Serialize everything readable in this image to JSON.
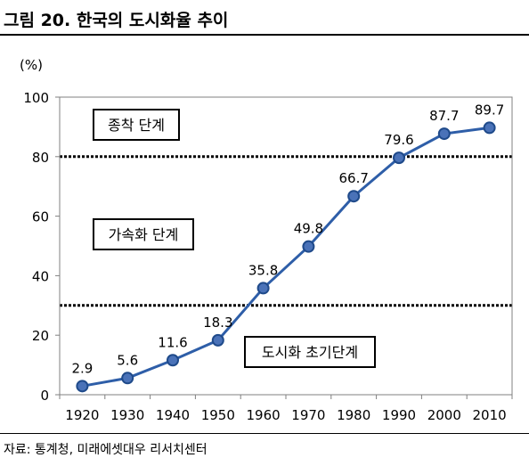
{
  "header": {
    "title": "그림 20. 한국의 도시화율 추이"
  },
  "footer": {
    "source": "자료: 통계청, 미래에셋대우 리서치센터"
  },
  "colors": {
    "line": "#2e5ea8",
    "marker_fill": "#4a72b8",
    "marker_edge": "#1f4a8a",
    "frame": "#808080"
  },
  "chart_data": {
    "type": "line",
    "unit_label": "(%)",
    "categories": [
      "1920",
      "1930",
      "1940",
      "1950",
      "1960",
      "1970",
      "1980",
      "1990",
      "2000",
      "2010"
    ],
    "values": [
      2.9,
      5.6,
      11.6,
      18.3,
      35.8,
      49.8,
      66.7,
      79.6,
      87.7,
      89.7
    ],
    "data_labels": [
      "2.9",
      "5.6",
      "11.6",
      "18.3",
      "35.8",
      "49.8",
      "66.7",
      "79.6",
      "87.7",
      "89.7"
    ],
    "ylim": [
      0,
      100
    ],
    "yticks": [
      0,
      20,
      40,
      60,
      80,
      100
    ],
    "ytick_labels": [
      "0",
      "20",
      "40",
      "60",
      "80",
      "100"
    ],
    "reference_lines": [
      {
        "value": 80,
        "style": "dotted"
      },
      {
        "value": 30,
        "style": "dotted"
      }
    ],
    "annotations": [
      {
        "text": "종착 단계",
        "anchor_value": 90,
        "position": "top-left"
      },
      {
        "text": "가속화 단계",
        "anchor_value": 53,
        "position": "middle-left"
      },
      {
        "text": "도시화 초기단계",
        "anchor_value": 14,
        "position": "bottom-right"
      }
    ],
    "grid": false
  }
}
